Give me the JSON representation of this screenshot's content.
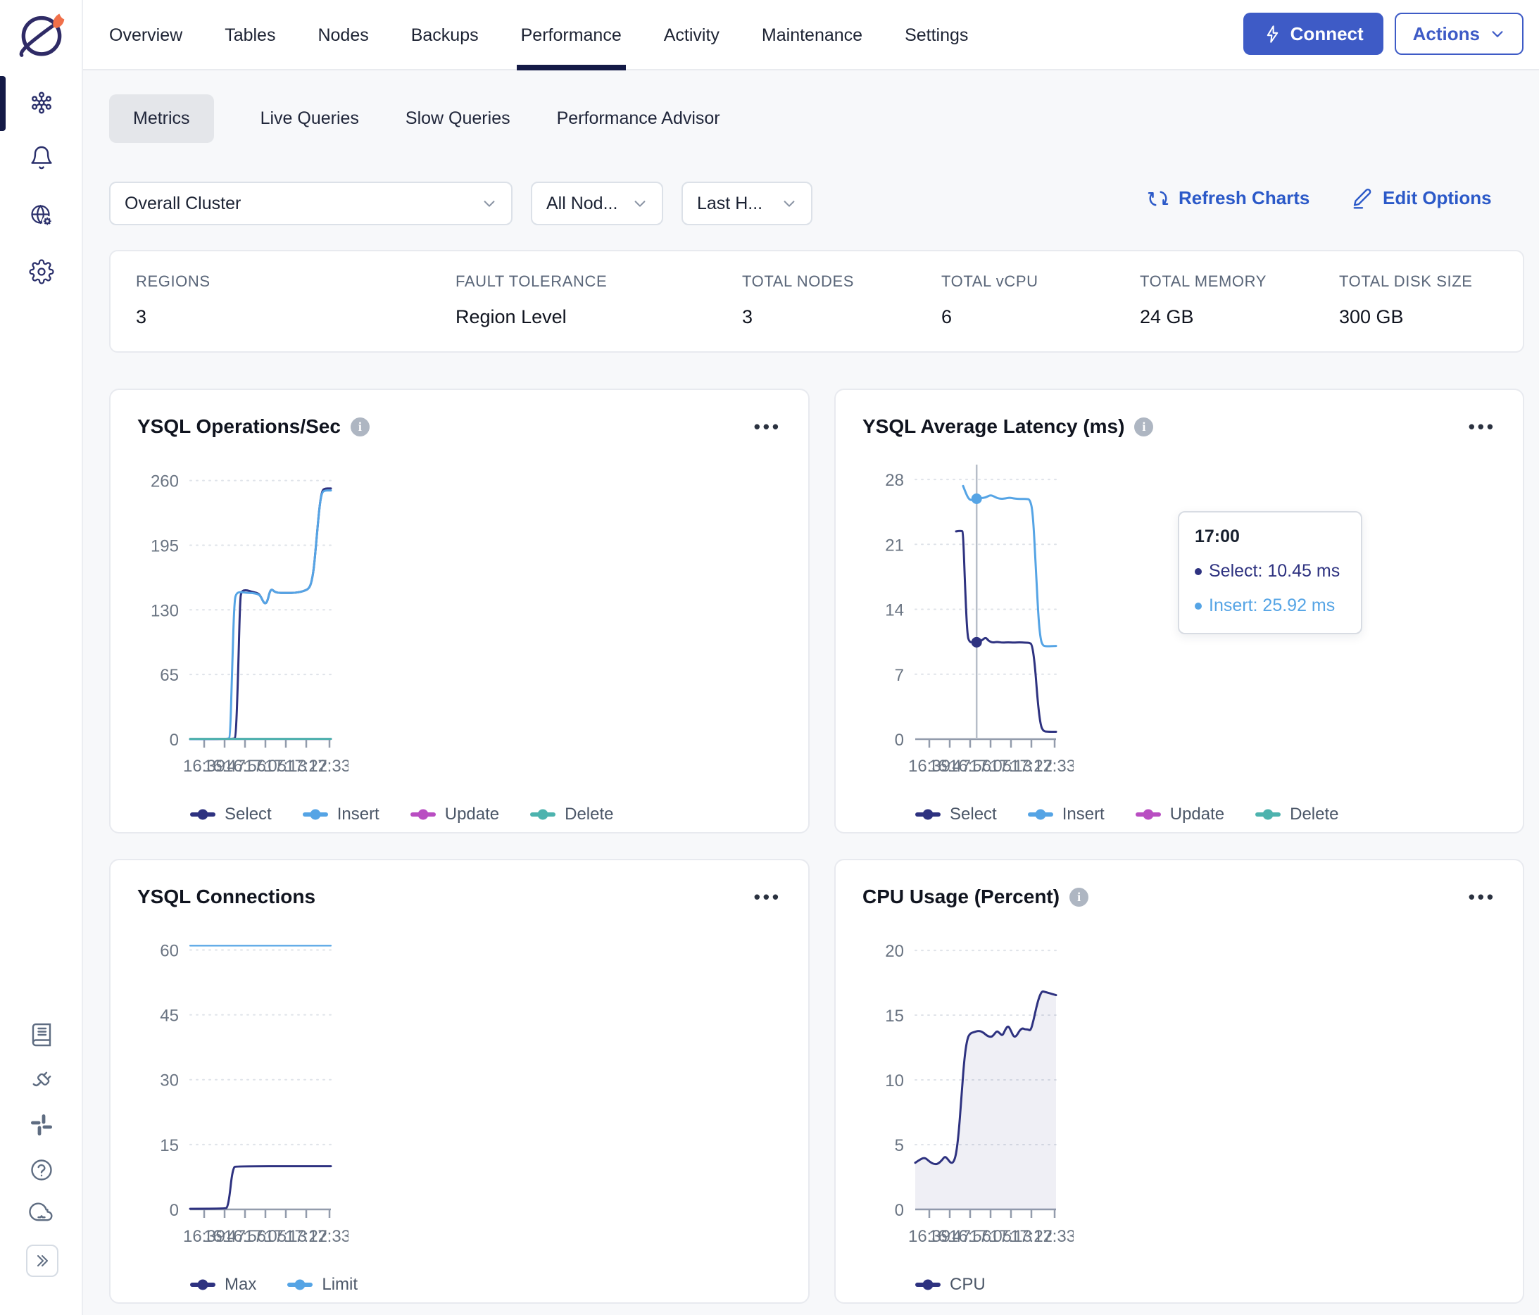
{
  "brand": {
    "logo": "yugabyte-planet-logo"
  },
  "top_nav": {
    "tabs": [
      {
        "label": "Overview",
        "active": false
      },
      {
        "label": "Tables",
        "active": false
      },
      {
        "label": "Nodes",
        "active": false
      },
      {
        "label": "Backups",
        "active": false
      },
      {
        "label": "Performance",
        "active": true
      },
      {
        "label": "Activity",
        "active": false
      },
      {
        "label": "Maintenance",
        "active": false
      },
      {
        "label": "Settings",
        "active": false
      }
    ],
    "connect_label": "Connect",
    "actions_label": "Actions"
  },
  "sub_nav": {
    "tabs": [
      "Metrics",
      "Live Queries",
      "Slow Queries",
      "Performance Advisor"
    ],
    "active": "Metrics"
  },
  "filters": {
    "cluster_value": "Overall Cluster",
    "nodes_value": "All Nod...",
    "time_value": "Last H...",
    "refresh_label": "Refresh Charts",
    "edit_label": "Edit Options"
  },
  "summary": [
    {
      "label": "REGIONS",
      "value": "3"
    },
    {
      "label": "FAULT TOLERANCE",
      "value": "Region Level"
    },
    {
      "label": "TOTAL NODES",
      "value": "3"
    },
    {
      "label": "TOTAL vCPU",
      "value": "6"
    },
    {
      "label": "TOTAL MEMORY",
      "value": "24 GB"
    },
    {
      "label": "TOTAL DISK SIZE",
      "value": "300 GB"
    }
  ],
  "colors": {
    "accent_blue": "#2b59c8",
    "connect_button": "#3e5bc6",
    "active_nav": "#141a46",
    "series_select": "#2e3280",
    "series_insert": "#55a4e5",
    "series_update": "#b94ec2",
    "series_delete": "#4db3ae",
    "axis_text": "#6a7482",
    "gridline": "#dfe3e9",
    "card_border": "#e8eaef",
    "page_bg": "#f7f8fa"
  },
  "chart_data": [
    {
      "type": "line",
      "title": "YSQL Operations/Sec",
      "has_info": true,
      "y_ticks": [
        0,
        65,
        130,
        195,
        260
      ],
      "y_max": 276,
      "x_ticks": [
        "16:39",
        "16:47",
        "16:56",
        "17:05",
        "17:13",
        "17:22",
        "17:33"
      ],
      "x_tick_fracs": [
        10,
        24.5,
        39,
        53.5,
        68,
        82.5,
        99
      ],
      "series": [
        {
          "name": "Select",
          "color": "#2e3280",
          "width": 3,
          "points": [
            [
              0,
              0
            ],
            [
              31,
              0
            ],
            [
              32.5,
              2
            ],
            [
              34,
              60
            ],
            [
              35.5,
              140
            ],
            [
              36.5,
              149
            ],
            [
              40,
              150
            ],
            [
              44,
              148
            ],
            [
              48,
              147
            ],
            [
              50,
              144
            ],
            [
              52,
              138
            ],
            [
              53.5,
              136
            ],
            [
              55,
              139
            ],
            [
              56.5,
              148
            ],
            [
              58,
              151
            ],
            [
              60,
              148
            ],
            [
              63,
              147
            ],
            [
              66,
              147
            ],
            [
              70,
              147
            ],
            [
              74,
              147
            ],
            [
              78,
              148
            ],
            [
              81,
              149
            ],
            [
              84,
              151
            ],
            [
              86,
              156
            ],
            [
              88,
              172
            ],
            [
              90,
              205
            ],
            [
              92,
              235
            ],
            [
              93.5,
              248
            ],
            [
              95,
              252
            ],
            [
              100,
              252
            ]
          ]
        },
        {
          "name": "Insert",
          "color": "#55a4e5",
          "width": 3,
          "points": [
            [
              0,
              0
            ],
            [
              27,
              0
            ],
            [
              28.5,
              2
            ],
            [
              30,
              80
            ],
            [
              31.5,
              140
            ],
            [
              33,
              147
            ],
            [
              36,
              148
            ],
            [
              40,
              147
            ],
            [
              44,
              147
            ],
            [
              48,
              146
            ],
            [
              50,
              144
            ],
            [
              52,
              138
            ],
            [
              53.5,
              136
            ],
            [
              55,
              139
            ],
            [
              56.5,
              148
            ],
            [
              58,
              151
            ],
            [
              60,
              148
            ],
            [
              63,
              147
            ],
            [
              66,
              147
            ],
            [
              70,
              147
            ],
            [
              74,
              147
            ],
            [
              78,
              148
            ],
            [
              81,
              149
            ],
            [
              84,
              151
            ],
            [
              86,
              156
            ],
            [
              88,
              172
            ],
            [
              90,
              205
            ],
            [
              92,
              235
            ],
            [
              93.5,
              247
            ],
            [
              95,
              250
            ],
            [
              100,
              250
            ]
          ]
        },
        {
          "name": "Update",
          "color": "#b94ec2",
          "width": 3,
          "points": [
            [
              0,
              0.3
            ],
            [
              100,
              0.3
            ]
          ]
        },
        {
          "name": "Delete",
          "color": "#4db3ae",
          "width": 3,
          "points": [
            [
              0,
              0.3
            ],
            [
              100,
              0.3
            ]
          ]
        }
      ]
    },
    {
      "type": "line",
      "title": "YSQL Average Latency (ms)",
      "has_info": true,
      "y_ticks": [
        0,
        7,
        14,
        21,
        28
      ],
      "y_max": 29.6,
      "x_ticks": [
        "16:39",
        "16:47",
        "16:56",
        "17:05",
        "17:13",
        "17:22",
        "17:33"
      ],
      "x_tick_fracs": [
        10,
        24.5,
        39,
        53.5,
        68,
        82.5,
        99
      ],
      "series": [
        {
          "name": "Select",
          "color": "#2e3280",
          "width": 3,
          "points": [
            [
              29,
              22.4
            ],
            [
              33,
              22.5
            ],
            [
              34,
              22.3
            ],
            [
              35.5,
              16
            ],
            [
              37,
              11.2
            ],
            [
              38.5,
              10.45
            ],
            [
              42,
              10.4
            ],
            [
              44,
              10.45
            ],
            [
              47,
              10.6
            ],
            [
              50,
              11.0
            ],
            [
              52,
              10.6
            ],
            [
              55,
              10.4
            ],
            [
              58,
              10.5
            ],
            [
              62,
              10.4
            ],
            [
              66,
              10.45
            ],
            [
              70,
              10.4
            ],
            [
              74,
              10.45
            ],
            [
              78,
              10.4
            ],
            [
              81,
              10.4
            ],
            [
              83,
              10.2
            ],
            [
              85,
              8
            ],
            [
              87,
              4
            ],
            [
              89,
              1.5
            ],
            [
              91,
              0.85
            ],
            [
              94,
              0.8
            ],
            [
              100,
              0.8
            ]
          ]
        },
        {
          "name": "Insert",
          "color": "#55a4e5",
          "width": 3,
          "points": [
            [
              34,
              27.3
            ],
            [
              36,
              26.5
            ],
            [
              38,
              25.9
            ],
            [
              40,
              25.75
            ],
            [
              43.6,
              25.92
            ],
            [
              47,
              26.0
            ],
            [
              50,
              26.05
            ],
            [
              53,
              26.3
            ],
            [
              55,
              26.25
            ],
            [
              58,
              26.0
            ],
            [
              61,
              25.9
            ],
            [
              64,
              25.95
            ],
            [
              67,
              26.05
            ],
            [
              70,
              25.95
            ],
            [
              73,
              25.9
            ],
            [
              76,
              25.9
            ],
            [
              79,
              25.9
            ],
            [
              81.5,
              25.85
            ],
            [
              83.5,
              24.5
            ],
            [
              85.5,
              19
            ],
            [
              87.5,
              13
            ],
            [
              89,
              10.8
            ],
            [
              90.5,
              10.1
            ],
            [
              93,
              10
            ],
            [
              100,
              10.05
            ]
          ]
        },
        {
          "name": "Update",
          "color": "#b94ec2",
          "width": 3,
          "points": []
        },
        {
          "name": "Delete",
          "color": "#4db3ae",
          "width": 3,
          "points": []
        }
      ],
      "cursor": {
        "x": 43.6,
        "markers": [
          {
            "series": 0,
            "value": 10.45
          },
          {
            "series": 1,
            "value": 25.92
          }
        ]
      },
      "tooltip": {
        "time": "17:00",
        "rows": [
          {
            "label": "Select",
            "value": "10.45 ms",
            "series": 0
          },
          {
            "label": "Insert",
            "value": "25.92 ms",
            "series": 1
          }
        ],
        "row0_text": "Select: 10.45 ms",
        "row1_text": "Insert: 25.92 ms"
      }
    },
    {
      "type": "line",
      "title": "YSQL Connections",
      "has_info": false,
      "y_ticks": [
        0,
        15,
        30,
        45,
        60
      ],
      "y_max": 63.5,
      "x_ticks": [
        "16:39",
        "16:47",
        "16:56",
        "17:05",
        "17:13",
        "17:22",
        "17:33"
      ],
      "x_tick_fracs": [
        10,
        24.5,
        39,
        53.5,
        68,
        82.5,
        99
      ],
      "series": [
        {
          "name": "Max",
          "color": "#2e3280",
          "width": 3,
          "points": [
            [
              0,
              0.15
            ],
            [
              25,
              0.15
            ],
            [
              26.5,
              0.5
            ],
            [
              28,
              3
            ],
            [
              29.5,
              7.5
            ],
            [
              31,
              9.7
            ],
            [
              32.5,
              10
            ],
            [
              100,
              10
            ]
          ]
        },
        {
          "name": "Limit",
          "color": "#55a4e5",
          "width": 2.2,
          "points": [
            [
              0,
              61
            ],
            [
              100,
              61
            ]
          ]
        }
      ]
    },
    {
      "type": "area",
      "title": "CPU Usage (Percent)",
      "has_info": true,
      "y_ticks": [
        0,
        5,
        10,
        15,
        20
      ],
      "y_max": 21.2,
      "x_ticks": [
        "16:39",
        "16:47",
        "16:56",
        "17:05",
        "17:13",
        "17:22",
        "17:33"
      ],
      "x_tick_fracs": [
        10,
        24.5,
        39,
        53.5,
        68,
        82.5,
        99
      ],
      "series": [
        {
          "name": "CPU",
          "color": "#2e3280",
          "width": 3,
          "area": true,
          "points": [
            [
              0,
              3.6
            ],
            [
              4,
              3.9
            ],
            [
              7,
              4.0
            ],
            [
              10,
              3.7
            ],
            [
              13,
              3.5
            ],
            [
              16,
              3.5
            ],
            [
              19,
              3.8
            ],
            [
              21,
              4.1
            ],
            [
              23,
              3.9
            ],
            [
              25,
              3.6
            ],
            [
              27,
              3.6
            ],
            [
              29,
              4.2
            ],
            [
              31,
              6
            ],
            [
              33,
              9
            ],
            [
              35,
              11.8
            ],
            [
              37,
              13.2
            ],
            [
              39,
              13.6
            ],
            [
              42,
              13.7
            ],
            [
              45,
              13.8
            ],
            [
              48,
              13.7
            ],
            [
              51,
              13.4
            ],
            [
              54,
              13.3
            ],
            [
              56,
              13.5
            ],
            [
              58,
              13.8
            ],
            [
              60,
              13.6
            ],
            [
              62,
              13.4
            ],
            [
              64,
              13.9
            ],
            [
              66,
              14.2
            ],
            [
              68,
              13.8
            ],
            [
              70,
              13.3
            ],
            [
              72,
              13.4
            ],
            [
              74,
              13.8
            ],
            [
              76,
              14.0
            ],
            [
              78,
              13.9
            ],
            [
              80,
              13.9
            ],
            [
              82,
              13.8
            ],
            [
              84,
              14.6
            ],
            [
              86,
              15.6
            ],
            [
              88,
              16.4
            ],
            [
              90,
              16.85
            ],
            [
              92,
              16.8
            ],
            [
              95,
              16.7
            ],
            [
              100,
              16.55
            ]
          ]
        }
      ]
    }
  ]
}
